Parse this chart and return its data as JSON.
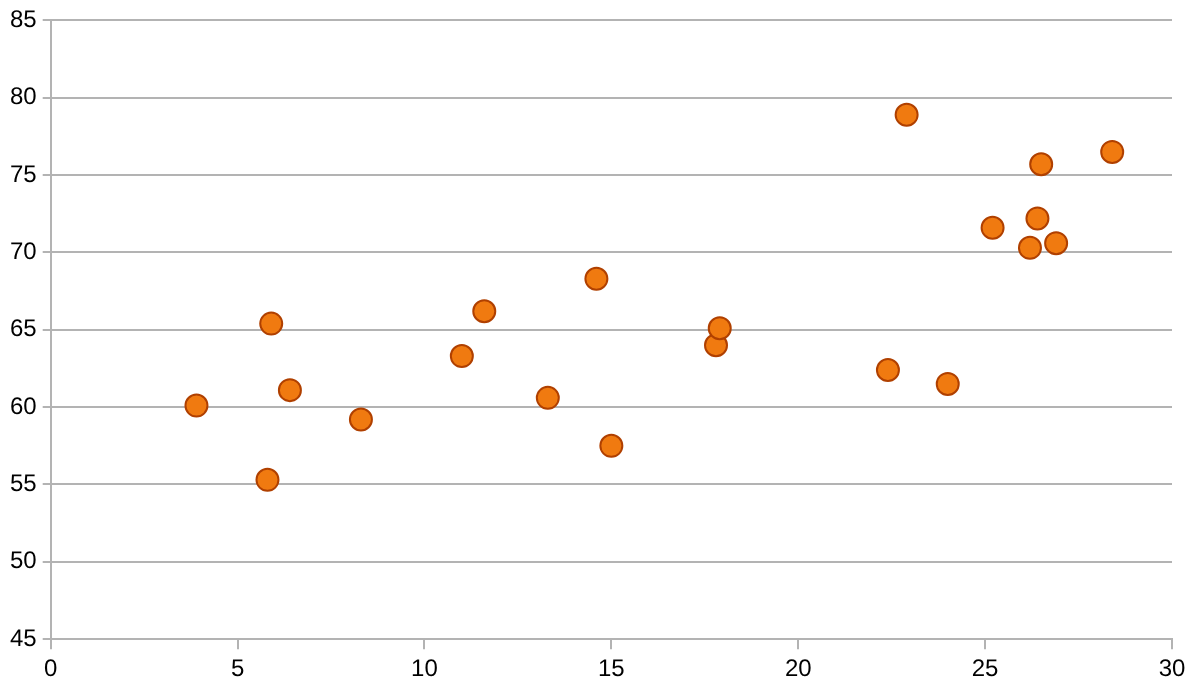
{
  "chart_data": {
    "type": "scatter",
    "color": "#f07a10",
    "marker": "circle",
    "grid": "y",
    "legend": false,
    "x": [
      3.9,
      5.9,
      6.4,
      5.8,
      8.3,
      11.0,
      11.6,
      13.3,
      14.6,
      15.0,
      17.8,
      17.9,
      22.4,
      24.0,
      22.9,
      25.2,
      26.2,
      26.4,
      26.9,
      26.5,
      28.4
    ],
    "values": [
      60.1,
      65.4,
      61.1,
      55.3,
      59.2,
      63.3,
      66.2,
      60.6,
      68.3,
      57.5,
      64.0,
      65.1,
      62.4,
      61.5,
      78.9,
      71.6,
      70.3,
      72.2,
      70.6,
      75.7,
      76.5
    ],
    "xlim": [
      0,
      30
    ],
    "xticks": [
      0,
      5,
      10,
      15,
      20,
      25,
      30
    ],
    "ylim": [
      45,
      85
    ],
    "yticks": [
      45,
      50,
      55,
      60,
      65,
      70,
      75,
      80,
      85
    ]
  }
}
